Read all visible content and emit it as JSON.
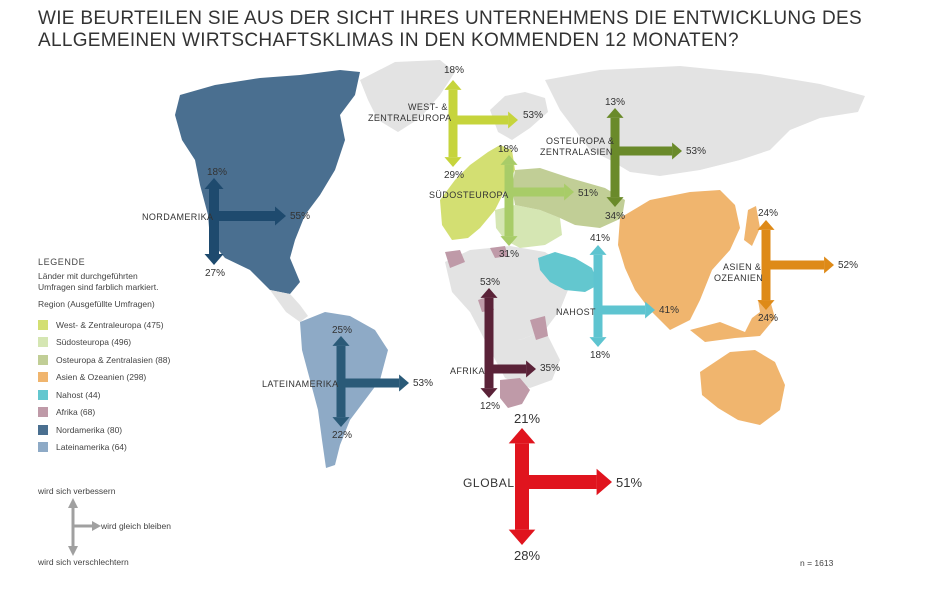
{
  "title": {
    "line1": "WIE BEURTEILEN SIE AUS DER SICHT IHRES UNTERNEHMENS DIE ENTWICKLUNG DES",
    "line2": "ALLGEMEINEN WIRTSCHAFTSKLIMAS IN DEN KOMMENDEN 12 MONATEN?"
  },
  "regions": {
    "west": {
      "label": "WEST- & ZENTRALEUROPA",
      "line1": "WEST- &",
      "line2": "ZENTRALEUROPA",
      "up": "18%",
      "right": "53%",
      "down": "29%",
      "color": "#c6d43c"
    },
    "south": {
      "label": "SÜDOSTEUROPA",
      "up": "18%",
      "right": "51%",
      "down": "31%",
      "color": "#a8cc68"
    },
    "east": {
      "label": "OSTEUROPA & ZENTRALASIEN",
      "line1": "OSTEUROPA &",
      "line2": "ZENTRALASIEN",
      "up": "13%",
      "right": "53%",
      "down": "34%",
      "color": "#6a8a2a"
    },
    "asia": {
      "label": "ASIEN & OZEANIEN",
      "line1": "ASIEN &",
      "line2": "OZEANIEN",
      "up": "24%",
      "right": "52%",
      "down": "24%",
      "color": "#de8a18"
    },
    "mideast": {
      "label": "NAHOST",
      "up": "41%",
      "right": "41%",
      "down": "18%",
      "color": "#5ec4d0"
    },
    "africa": {
      "label": "AFRIKA",
      "up": "53%",
      "right": "35%",
      "down": "12%",
      "color": "#5a2238"
    },
    "namerica": {
      "label": "NORDAMERIKA",
      "up": "18%",
      "right": "55%",
      "down": "27%",
      "color": "#1e4a6e"
    },
    "latam": {
      "label": "LATEINAMERIKA",
      "up": "25%",
      "right": "53%",
      "down": "22%",
      "color": "#2a5a78"
    },
    "global": {
      "label": "GLOBAL",
      "up": "21%",
      "right": "51%",
      "down": "28%",
      "color": "#e0141e"
    }
  },
  "legend": {
    "heading": "LEGENDE",
    "desc1": "Länder mit durchgeführten",
    "desc2": "Umfragen sind farblich markiert.",
    "region_heading": "Region (Ausgefüllte Umfragen)",
    "items": [
      {
        "label": "West- & Zentraleuropa (475)",
        "color": "#d3df72"
      },
      {
        "label": "Südosteuropa (496)",
        "color": "#d5e6b3"
      },
      {
        "label": "Osteuropa & Zentralasien (88)",
        "color": "#c1ce96"
      },
      {
        "label": "Asien & Ozeanien (298)",
        "color": "#f0b56e"
      },
      {
        "label": "Nahost (44)",
        "color": "#63c7cf"
      },
      {
        "label": "Afrika (68)",
        "color": "#bf9aa8"
      },
      {
        "label": "Nordamerika (80)",
        "color": "#4a6f90"
      },
      {
        "label": "Lateinamerika (64)",
        "color": "#8eaac6"
      }
    ]
  },
  "key": {
    "up": "wird sich verbessern",
    "right": "wird gleich bleiben",
    "down": "wird sich verschlechtern"
  },
  "note": "n = 1613",
  "colors": {
    "land_grey": "#e3e3e3",
    "key_arrow": "#a0a0a0"
  }
}
